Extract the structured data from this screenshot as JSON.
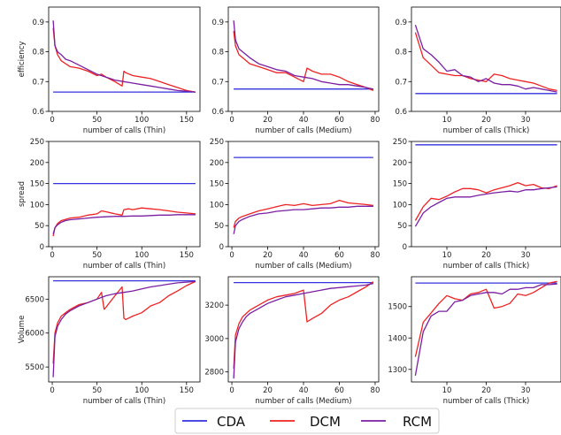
{
  "colors": {
    "CDA": "#3333dd",
    "DCM": "#ee2222",
    "RCM": "#7a1fa2"
  },
  "legend": [
    {
      "name": "CDA",
      "color": "#3333dd"
    },
    {
      "name": "DCM",
      "color": "#ee2222"
    },
    {
      "name": "RCM",
      "color": "#7a1fa2"
    }
  ],
  "chart_data": [
    {
      "id": "p00",
      "type": "line",
      "row": 0,
      "col": 0,
      "xlabel": "number of calls (Thin)",
      "ylabel": "efficiency",
      "xlim": [
        -4,
        165
      ],
      "ylim": [
        0.6,
        0.95
      ],
      "xticks": [
        0,
        50,
        100,
        150
      ],
      "yticks": [
        0.6,
        0.7,
        0.8,
        0.9
      ],
      "series": [
        {
          "name": "CDA",
          "x": [
            1,
            160
          ],
          "y": [
            0.665,
            0.665
          ]
        },
        {
          "name": "DCM",
          "x": [
            1,
            3,
            6,
            10,
            15,
            20,
            30,
            40,
            50,
            55,
            60,
            70,
            78,
            80,
            82,
            90,
            100,
            110,
            120,
            130,
            140,
            150,
            160
          ],
          "y": [
            0.88,
            0.82,
            0.79,
            0.77,
            0.76,
            0.75,
            0.745,
            0.735,
            0.72,
            0.725,
            0.715,
            0.7,
            0.685,
            0.735,
            0.73,
            0.72,
            0.715,
            0.71,
            0.7,
            0.69,
            0.68,
            0.67,
            0.665
          ]
        },
        {
          "name": "RCM",
          "x": [
            1,
            3,
            6,
            10,
            15,
            20,
            30,
            40,
            50,
            60,
            70,
            80,
            90,
            100,
            110,
            120,
            130,
            140,
            150,
            160
          ],
          "y": [
            0.905,
            0.82,
            0.8,
            0.79,
            0.775,
            0.77,
            0.755,
            0.74,
            0.725,
            0.715,
            0.705,
            0.7,
            0.695,
            0.69,
            0.685,
            0.68,
            0.675,
            0.67,
            0.668,
            0.665
          ]
        }
      ]
    },
    {
      "id": "p01",
      "type": "line",
      "row": 0,
      "col": 1,
      "xlabel": "number of calls (Medium)",
      "ylabel": "",
      "xlim": [
        -2,
        82
      ],
      "ylim": [
        0.6,
        0.95
      ],
      "xticks": [
        0,
        20,
        40,
        60,
        80
      ],
      "yticks": [
        0.6,
        0.7,
        0.8,
        0.9
      ],
      "series": [
        {
          "name": "CDA",
          "x": [
            1,
            79
          ],
          "y": [
            0.675,
            0.675
          ]
        },
        {
          "name": "DCM",
          "x": [
            1,
            2,
            4,
            6,
            10,
            15,
            20,
            25,
            30,
            35,
            40,
            42,
            45,
            50,
            55,
            60,
            65,
            70,
            75,
            79
          ],
          "y": [
            0.87,
            0.82,
            0.79,
            0.78,
            0.76,
            0.75,
            0.74,
            0.73,
            0.73,
            0.715,
            0.7,
            0.745,
            0.735,
            0.725,
            0.725,
            0.715,
            0.7,
            0.69,
            0.68,
            0.67
          ]
        },
        {
          "name": "RCM",
          "x": [
            1,
            2,
            4,
            6,
            10,
            15,
            20,
            25,
            30,
            35,
            40,
            45,
            50,
            55,
            60,
            65,
            70,
            75,
            79
          ],
          "y": [
            0.905,
            0.84,
            0.81,
            0.8,
            0.78,
            0.76,
            0.75,
            0.74,
            0.735,
            0.72,
            0.715,
            0.71,
            0.7,
            0.695,
            0.69,
            0.69,
            0.685,
            0.68,
            0.675
          ]
        }
      ]
    },
    {
      "id": "p02",
      "type": "line",
      "row": 0,
      "col": 2,
      "xlabel": "number of calls (Thick)",
      "ylabel": "",
      "xlim": [
        1,
        39
      ],
      "ylim": [
        0.6,
        0.95
      ],
      "xticks": [
        10,
        20,
        30
      ],
      "yticks": [
        0.6,
        0.7,
        0.8,
        0.9
      ],
      "series": [
        {
          "name": "CDA",
          "x": [
            2,
            38
          ],
          "y": [
            0.66,
            0.66
          ]
        },
        {
          "name": "DCM",
          "x": [
            2,
            4,
            6,
            8,
            10,
            12,
            14,
            16,
            18,
            20,
            22,
            24,
            26,
            28,
            30,
            32,
            34,
            36,
            38
          ],
          "y": [
            0.865,
            0.78,
            0.755,
            0.73,
            0.725,
            0.72,
            0.72,
            0.71,
            0.705,
            0.7,
            0.725,
            0.72,
            0.71,
            0.705,
            0.7,
            0.695,
            0.685,
            0.675,
            0.67
          ]
        },
        {
          "name": "RCM",
          "x": [
            2,
            4,
            6,
            8,
            10,
            12,
            14,
            16,
            18,
            20,
            22,
            24,
            26,
            28,
            30,
            32,
            34,
            36,
            38
          ],
          "y": [
            0.89,
            0.81,
            0.79,
            0.765,
            0.735,
            0.74,
            0.72,
            0.715,
            0.7,
            0.71,
            0.695,
            0.69,
            0.69,
            0.685,
            0.675,
            0.68,
            0.675,
            0.67,
            0.665
          ]
        }
      ]
    },
    {
      "id": "p10",
      "type": "line",
      "row": 1,
      "col": 0,
      "xlabel": "number of calls (Thin)",
      "ylabel": "spread",
      "xlim": [
        -4,
        165
      ],
      "ylim": [
        0,
        250
      ],
      "xticks": [
        0,
        50,
        100,
        150
      ],
      "yticks": [
        0,
        50,
        100,
        150,
        200,
        250
      ],
      "series": [
        {
          "name": "CDA",
          "x": [
            1,
            160
          ],
          "y": [
            150,
            150
          ]
        },
        {
          "name": "DCM",
          "x": [
            1,
            3,
            6,
            10,
            15,
            20,
            30,
            40,
            50,
            55,
            60,
            70,
            78,
            80,
            85,
            90,
            100,
            110,
            120,
            130,
            140,
            150,
            160
          ],
          "y": [
            25,
            45,
            55,
            62,
            65,
            68,
            70,
            75,
            78,
            85,
            83,
            78,
            75,
            88,
            90,
            88,
            92,
            90,
            88,
            85,
            82,
            80,
            78
          ]
        },
        {
          "name": "RCM",
          "x": [
            1,
            3,
            6,
            10,
            15,
            20,
            30,
            40,
            50,
            60,
            70,
            80,
            90,
            100,
            110,
            120,
            130,
            140,
            150,
            160
          ],
          "y": [
            30,
            45,
            52,
            58,
            62,
            64,
            66,
            68,
            70,
            71,
            72,
            72,
            73,
            73,
            74,
            75,
            75,
            76,
            76,
            76
          ]
        }
      ]
    },
    {
      "id": "p11",
      "type": "line",
      "row": 1,
      "col": 1,
      "xlabel": "number of calls (Medium)",
      "ylabel": "",
      "xlim": [
        -2,
        82
      ],
      "ylim": [
        0,
        250
      ],
      "xticks": [
        0,
        20,
        40,
        60,
        80
      ],
      "yticks": [
        0,
        50,
        100,
        150,
        200,
        250
      ],
      "series": [
        {
          "name": "CDA",
          "x": [
            1,
            79
          ],
          "y": [
            212,
            212
          ]
        },
        {
          "name": "DCM",
          "x": [
            1,
            2,
            4,
            6,
            10,
            15,
            20,
            25,
            30,
            35,
            40,
            45,
            50,
            55,
            60,
            65,
            70,
            75,
            79
          ],
          "y": [
            45,
            60,
            68,
            72,
            78,
            85,
            90,
            95,
            100,
            98,
            102,
            98,
            100,
            102,
            110,
            104,
            102,
            100,
            98
          ]
        },
        {
          "name": "RCM",
          "x": [
            1,
            2,
            4,
            6,
            10,
            15,
            20,
            25,
            30,
            35,
            40,
            45,
            50,
            55,
            60,
            65,
            70,
            75,
            79
          ],
          "y": [
            30,
            50,
            60,
            65,
            72,
            78,
            80,
            84,
            86,
            88,
            88,
            90,
            92,
            92,
            94,
            94,
            96,
            96,
            96
          ]
        }
      ]
    },
    {
      "id": "p12",
      "type": "line",
      "row": 1,
      "col": 2,
      "xlabel": "number of calls (Thick)",
      "ylabel": "",
      "xlim": [
        1,
        39
      ],
      "ylim": [
        0,
        250
      ],
      "xticks": [
        10,
        20,
        30
      ],
      "yticks": [
        0,
        50,
        100,
        150,
        200,
        250
      ],
      "series": [
        {
          "name": "CDA",
          "x": [
            2,
            38
          ],
          "y": [
            242,
            242
          ]
        },
        {
          "name": "DCM",
          "x": [
            2,
            4,
            6,
            8,
            10,
            12,
            14,
            16,
            18,
            20,
            22,
            24,
            26,
            28,
            30,
            32,
            34,
            36,
            38
          ],
          "y": [
            62,
            95,
            115,
            112,
            120,
            130,
            138,
            138,
            135,
            128,
            135,
            140,
            145,
            152,
            145,
            148,
            140,
            138,
            145
          ]
        },
        {
          "name": "RCM",
          "x": [
            2,
            4,
            6,
            8,
            10,
            12,
            14,
            16,
            18,
            20,
            22,
            24,
            26,
            28,
            30,
            32,
            34,
            36,
            38
          ],
          "y": [
            48,
            80,
            95,
            105,
            115,
            118,
            118,
            118,
            122,
            125,
            128,
            130,
            132,
            130,
            135,
            135,
            138,
            140,
            142
          ]
        }
      ]
    },
    {
      "id": "p20",
      "type": "line",
      "row": 2,
      "col": 0,
      "xlabel": "number of calls (Thin)",
      "ylabel": "Volume",
      "xlim": [
        -4,
        165
      ],
      "ylim": [
        5280,
        6830
      ],
      "xticks": [
        0,
        50,
        100,
        150
      ],
      "yticks": [
        5500,
        6000,
        6500
      ],
      "series": [
        {
          "name": "CDA",
          "x": [
            1,
            160
          ],
          "y": [
            6770,
            6770
          ]
        },
        {
          "name": "DCM",
          "x": [
            1,
            3,
            6,
            10,
            15,
            20,
            30,
            40,
            50,
            55,
            58,
            60,
            70,
            78,
            80,
            82,
            90,
            100,
            110,
            120,
            130,
            140,
            150,
            160
          ],
          "y": [
            5550,
            6000,
            6150,
            6250,
            6300,
            6350,
            6420,
            6450,
            6500,
            6600,
            6350,
            6380,
            6550,
            6680,
            6220,
            6200,
            6250,
            6300,
            6400,
            6450,
            6550,
            6620,
            6700,
            6760
          ]
        },
        {
          "name": "RCM",
          "x": [
            1,
            3,
            6,
            10,
            15,
            20,
            30,
            40,
            50,
            60,
            70,
            80,
            90,
            100,
            110,
            120,
            130,
            140,
            150,
            160
          ],
          "y": [
            5350,
            5950,
            6100,
            6200,
            6280,
            6330,
            6400,
            6450,
            6500,
            6550,
            6580,
            6600,
            6620,
            6650,
            6680,
            6700,
            6720,
            6740,
            6750,
            6760
          ]
        }
      ]
    },
    {
      "id": "p21",
      "type": "line",
      "row": 2,
      "col": 1,
      "xlabel": "number of calls (Medium)",
      "ylabel": "",
      "xlim": [
        -2,
        82
      ],
      "ylim": [
        2740,
        3370
      ],
      "xticks": [
        0,
        20,
        40,
        60,
        80
      ],
      "yticks": [
        2800,
        3000,
        3200
      ],
      "series": [
        {
          "name": "CDA",
          "x": [
            1,
            79
          ],
          "y": [
            3335,
            3335
          ]
        },
        {
          "name": "DCM",
          "x": [
            1,
            2,
            4,
            6,
            8,
            10,
            15,
            20,
            25,
            30,
            35,
            40,
            42,
            45,
            50,
            55,
            60,
            65,
            70,
            75,
            79
          ],
          "y": [
            2820,
            3020,
            3090,
            3130,
            3150,
            3170,
            3200,
            3230,
            3250,
            3260,
            3270,
            3290,
            3100,
            3120,
            3150,
            3200,
            3230,
            3250,
            3280,
            3310,
            3340
          ]
        },
        {
          "name": "RCM",
          "x": [
            1,
            2,
            4,
            6,
            8,
            10,
            15,
            20,
            25,
            30,
            35,
            40,
            45,
            50,
            55,
            60,
            65,
            70,
            75,
            79
          ],
          "y": [
            2760,
            2980,
            3060,
            3100,
            3130,
            3150,
            3180,
            3210,
            3230,
            3250,
            3260,
            3270,
            3280,
            3290,
            3300,
            3305,
            3310,
            3315,
            3320,
            3330
          ]
        }
      ]
    },
    {
      "id": "p22",
      "type": "line",
      "row": 2,
      "col": 2,
      "xlabel": "number of calls (Thick)",
      "ylabel": "",
      "xlim": [
        1,
        39
      ],
      "ylim": [
        1260,
        1595
      ],
      "xticks": [
        10,
        20,
        30
      ],
      "yticks": [
        1300,
        1400,
        1500
      ],
      "series": [
        {
          "name": "CDA",
          "x": [
            2,
            38
          ],
          "y": [
            1575,
            1575
          ]
        },
        {
          "name": "DCM",
          "x": [
            2,
            4,
            6,
            8,
            10,
            12,
            14,
            16,
            18,
            20,
            22,
            24,
            26,
            28,
            30,
            32,
            34,
            36,
            38
          ],
          "y": [
            1340,
            1450,
            1480,
            1510,
            1535,
            1525,
            1520,
            1540,
            1545,
            1555,
            1495,
            1500,
            1510,
            1540,
            1535,
            1545,
            1560,
            1575,
            1580
          ]
        },
        {
          "name": "RCM",
          "x": [
            2,
            4,
            6,
            8,
            10,
            12,
            14,
            16,
            18,
            20,
            22,
            24,
            26,
            28,
            30,
            32,
            34,
            36,
            38
          ],
          "y": [
            1280,
            1420,
            1470,
            1485,
            1485,
            1515,
            1520,
            1535,
            1540,
            1545,
            1545,
            1540,
            1555,
            1555,
            1560,
            1560,
            1570,
            1570,
            1572
          ]
        }
      ]
    }
  ]
}
